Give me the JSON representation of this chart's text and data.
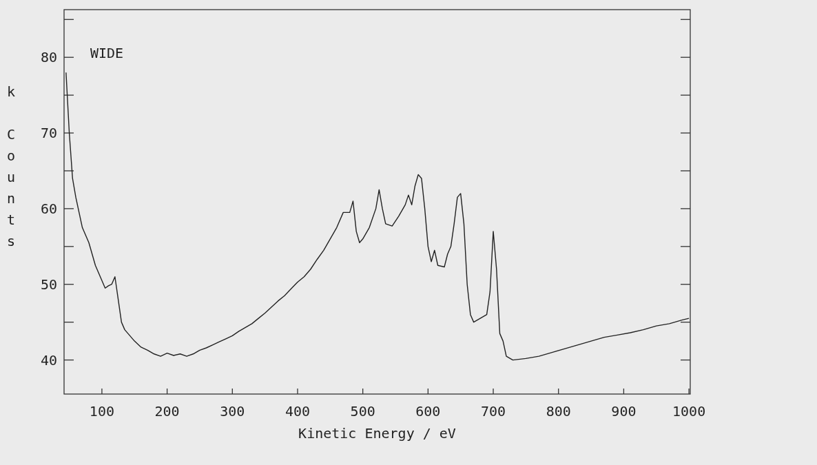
{
  "chart_data": {
    "type": "line",
    "xlabel": "Kinetic Energy / eV",
    "ylabel": "k Counts",
    "annotations": [
      "WIDE"
    ],
    "xlim": [
      42,
      1002
    ],
    "ylim": [
      35.5,
      86.3
    ],
    "xticks": [
      100,
      200,
      300,
      400,
      500,
      600,
      700,
      800,
      900,
      1000
    ],
    "yticks": [
      40,
      {
        "value": 45,
        "label": null
      },
      50,
      {
        "value": 55,
        "label": null
      },
      60,
      {
        "value": 65,
        "label": null
      },
      70,
      {
        "value": 75,
        "label": null
      },
      80,
      {
        "value": 85,
        "label": null
      }
    ],
    "grid": false,
    "marker": "none",
    "line_style": "solid",
    "series": [
      {
        "color": "#222222",
        "x": [
          45,
          50,
          55,
          60,
          65,
          70,
          75,
          80,
          85,
          90,
          95,
          100,
          105,
          110,
          115,
          120,
          125,
          130,
          135,
          140,
          150,
          160,
          170,
          180,
          190,
          200,
          210,
          220,
          230,
          240,
          250,
          260,
          270,
          280,
          290,
          300,
          310,
          320,
          330,
          340,
          350,
          360,
          370,
          380,
          390,
          400,
          410,
          420,
          430,
          440,
          450,
          460,
          470,
          480,
          485,
          490,
          495,
          500,
          510,
          520,
          525,
          530,
          535,
          545,
          555,
          565,
          570,
          575,
          580,
          585,
          590,
          595,
          600,
          605,
          610,
          615,
          625,
          630,
          635,
          640,
          645,
          650,
          655,
          660,
          665,
          670,
          680,
          690,
          695,
          700,
          705,
          710,
          715,
          720,
          730,
          750,
          770,
          790,
          810,
          830,
          850,
          870,
          890,
          910,
          930,
          950,
          970,
          990,
          1000
        ],
        "values": [
          78,
          70,
          64,
          61.5,
          59.5,
          57.5,
          56.5,
          55.5,
          54,
          52.5,
          51.5,
          50.5,
          49.5,
          49.8,
          50,
          51,
          48,
          45,
          44,
          43.5,
          42.5,
          41.7,
          41.3,
          40.8,
          40.5,
          40.9,
          40.6,
          40.8,
          40.5,
          40.8,
          41.3,
          41.6,
          42,
          42.4,
          42.8,
          43.2,
          43.8,
          44.3,
          44.8,
          45.5,
          46.2,
          47,
          47.8,
          48.5,
          49.4,
          50.3,
          51,
          52,
          53.3,
          54.5,
          56,
          57.5,
          59.5,
          59.5,
          61,
          57,
          55.5,
          56,
          57.5,
          60,
          62.5,
          60,
          58,
          57.7,
          59,
          60.5,
          61.8,
          60.5,
          63,
          64.5,
          64,
          60,
          55,
          53,
          54.5,
          52.5,
          52.3,
          54,
          55,
          58,
          61.5,
          62,
          58,
          50,
          46,
          45,
          45.5,
          46,
          49,
          57,
          52,
          43.5,
          42.5,
          40.5,
          40,
          40.2,
          40.5,
          41,
          41.5,
          42,
          42.5,
          43,
          43.3,
          43.6,
          44,
          44.5,
          44.8,
          45.3,
          45.5
        ]
      }
    ]
  }
}
